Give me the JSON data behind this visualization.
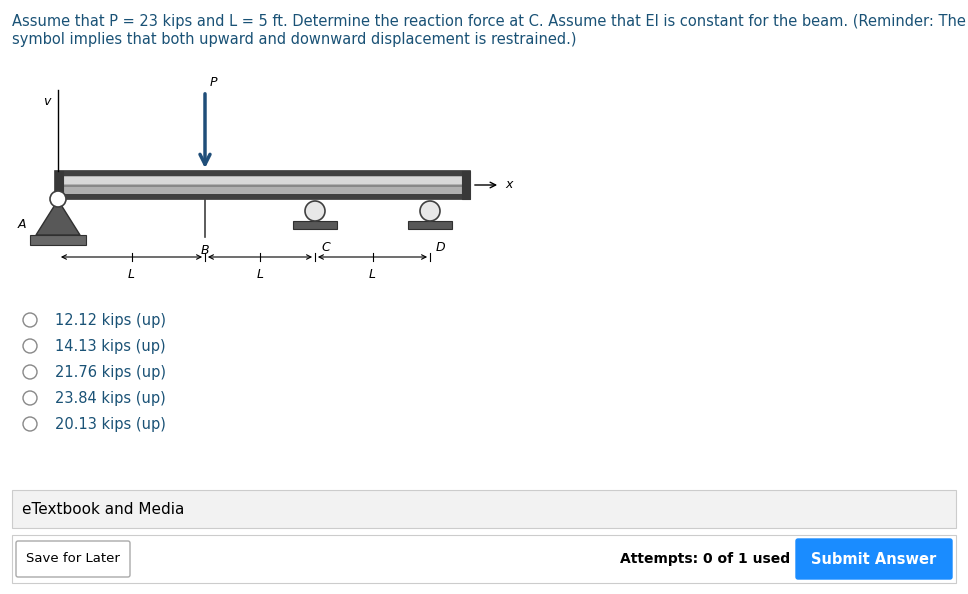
{
  "title_color": "#1a5276",
  "title_fontsize": 10.5,
  "load_arrow_color": "#1f4e79",
  "options": [
    "12.12 kips (up)",
    "14.13 kips (up)",
    "21.76 kips (up)",
    "23.84 kips (up)",
    "20.13 kips (up)"
  ],
  "etextbook_label": "eTextbook and Media",
  "save_later_label": "Save for Later",
  "attempts_label": "Attempts: 0 of 1 used",
  "submit_label": "Submit Answer",
  "submit_color": "#1a8cff",
  "background_color": "#ffffff",
  "fig_width": 9.68,
  "fig_height": 5.94,
  "beam_gray": "#b0b0b0",
  "beam_dark": "#383838",
  "beam_light": "#d4d4d4",
  "support_gray": "#686868"
}
